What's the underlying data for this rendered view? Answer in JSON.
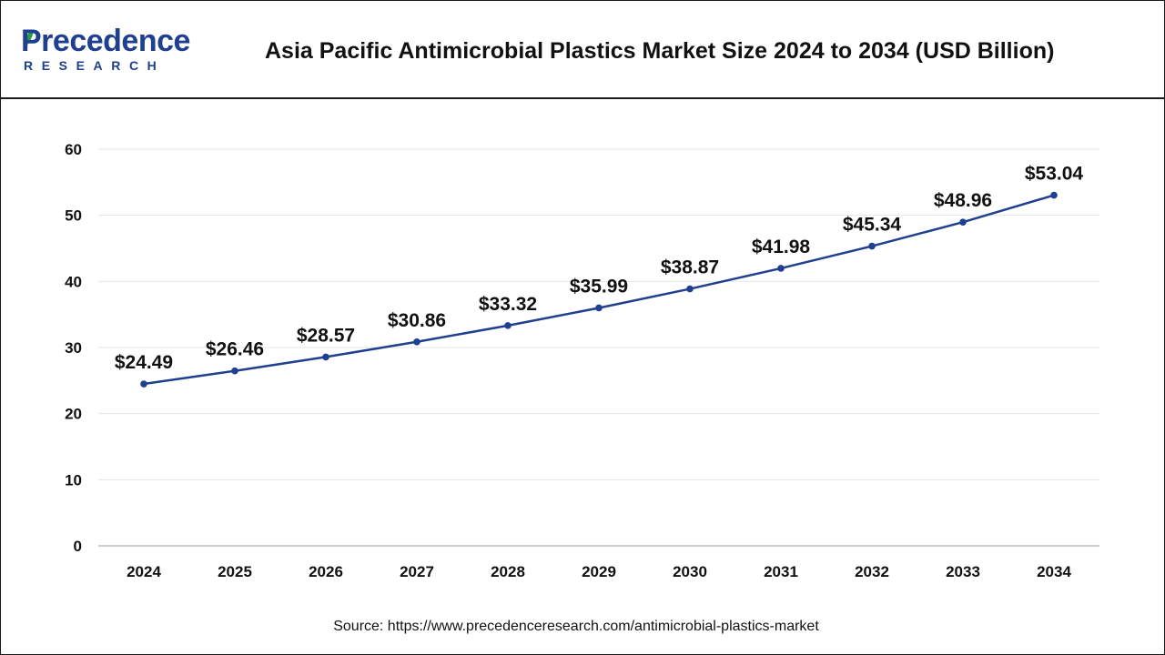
{
  "logo": {
    "brand_top": "Precedence",
    "brand_bottom": "RESEARCH"
  },
  "chart_data": {
    "type": "line",
    "title": "Asia Pacific Antimicrobial Plastics Market Size 2024 to 2034 (USD Billion)",
    "xlabel": "",
    "ylabel": "",
    "categories": [
      "2024",
      "2025",
      "2026",
      "2027",
      "2028",
      "2029",
      "2030",
      "2031",
      "2032",
      "2033",
      "2034"
    ],
    "series": [
      {
        "name": "Market Size (USD Billion)",
        "values": [
          24.49,
          26.46,
          28.57,
          30.86,
          33.32,
          35.99,
          38.87,
          41.98,
          45.34,
          48.96,
          53.04
        ],
        "labels": [
          "$24.49",
          "$26.46",
          "$28.57",
          "$30.86",
          "$33.32",
          "$35.99",
          "$38.87",
          "$41.98",
          "$45.34",
          "$48.96",
          "$53.04"
        ]
      }
    ],
    "ylim": [
      0,
      60
    ],
    "yticks": [
      "0",
      "10",
      "20",
      "30",
      "40",
      "50",
      "60"
    ],
    "grid": true,
    "legend": "none",
    "line_color": "#1f3f8f",
    "source": "Source: https://www.precedenceresearch.com/antimicrobial-plastics-market"
  }
}
